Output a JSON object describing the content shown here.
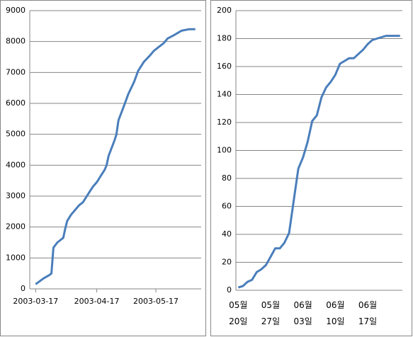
{
  "chart_data": [
    {
      "type": "line",
      "color": "#4a7ebb",
      "grid": true,
      "x": [
        "2003-03-17",
        "2003-03-21",
        "2003-03-24",
        "2003-03-25",
        "2003-03-26",
        "2003-03-28",
        "2003-03-31",
        "2003-04-01",
        "2003-04-02",
        "2003-04-04",
        "2003-04-08",
        "2003-04-10",
        "2003-04-13",
        "2003-04-15",
        "2003-04-17",
        "2003-04-18",
        "2003-04-19",
        "2003-04-21",
        "2003-04-22",
        "2003-04-23",
        "2003-04-26",
        "2003-04-27",
        "2003-04-28",
        "2003-05-01",
        "2003-05-03",
        "2003-05-06",
        "2003-05-08",
        "2003-05-11",
        "2003-05-14",
        "2003-05-16",
        "2003-05-19",
        "2003-05-21",
        "2003-05-23",
        "2003-05-26",
        "2003-05-30",
        "2003-06-03",
        "2003-06-06"
      ],
      "values": [
        150,
        340,
        450,
        500,
        1330,
        1500,
        1650,
        1950,
        2200,
        2400,
        2700,
        2800,
        3100,
        3300,
        3450,
        3550,
        3650,
        3850,
        4000,
        4300,
        4800,
        5000,
        5450,
        5950,
        6300,
        6700,
        7050,
        7350,
        7550,
        7700,
        7850,
        7950,
        8100,
        8200,
        8350,
        8400,
        8400
      ],
      "xlim": [
        "2003-03-14",
        "2003-06-09"
      ],
      "xticks": [
        "2003-03-17",
        "2003-04-17",
        "2003-05-17"
      ],
      "ylim": [
        0,
        9000
      ],
      "yticks": [
        0,
        1000,
        2000,
        3000,
        4000,
        5000,
        6000,
        7000,
        8000,
        9000
      ]
    },
    {
      "type": "line",
      "color": "#4a7ebb",
      "grid": true,
      "categories": [
        "05월 20일",
        null,
        null,
        null,
        null,
        null,
        null,
        "05월 27일",
        null,
        null,
        null,
        null,
        null,
        null,
        "06월 03일",
        null,
        null,
        null,
        null,
        null,
        null,
        "06월 10일",
        null,
        null,
        null,
        null,
        null,
        null,
        "06월 17일",
        null,
        null,
        null,
        null,
        null,
        null,
        null
      ],
      "values": [
        2,
        3,
        6,
        7.5,
        13,
        15,
        18,
        24,
        30,
        30,
        34,
        41,
        64,
        87,
        95,
        106,
        121,
        125,
        138,
        145,
        149,
        154,
        162,
        164,
        166,
        166,
        169,
        172,
        176,
        179,
        180,
        181,
        182,
        182,
        182,
        182
      ],
      "ylim": [
        0,
        200
      ],
      "yticks": [
        0,
        20,
        40,
        60,
        80,
        100,
        120,
        140,
        160,
        180,
        200
      ]
    }
  ]
}
